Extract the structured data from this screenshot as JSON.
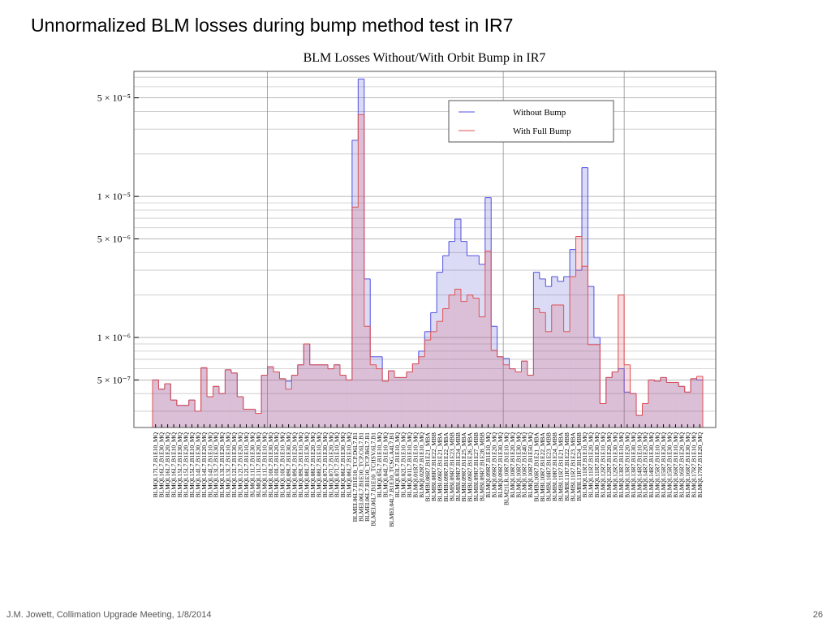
{
  "slide_title": "Unnormalized BLM losses during bump method test in IR7",
  "footer": "J.M. Jowett, Collimation Upgrade Meeting, 1/8/2014",
  "page_number": "26",
  "chart_data": {
    "type": "step",
    "title": "BLM Losses Without/With Orbit Bump in IR7",
    "log_y": true,
    "grid": true,
    "legend": "top-right",
    "ylim": [
      2.3e-07,
      7.7e-05
    ],
    "yticks": [
      {
        "value": 5e-07,
        "label": "5 × 10⁻⁷"
      },
      {
        "value": 1e-06,
        "label": "1 × 10⁻⁶"
      },
      {
        "value": 5e-06,
        "label": "5 × 10⁻⁶"
      },
      {
        "value": 1e-05,
        "label": "1 × 10⁻⁵"
      },
      {
        "value": 5e-05,
        "label": "5 × 10⁻⁵"
      }
    ],
    "minor_yticks": [
      3e-07,
      4e-07,
      6e-07,
      7e-07,
      8e-07,
      9e-07,
      2e-06,
      3e-06,
      4e-06,
      6e-06,
      7e-06,
      8e-06,
      9e-06,
      2e-05,
      3e-05,
      4e-05,
      6e-05,
      7e-05
    ],
    "xgrid_before": [
      19,
      58,
      78
    ],
    "categories": [
      "BLMQI.17L7.B1E10_MQ",
      "BLMQI.16L7.B1E30_MQ",
      "BLMQI.16L7.B1E20_MQ",
      "BLMQI.16L7.B1E10_MQ",
      "BLMQI.15L7.B1E30_MQ",
      "BLMQI.15L7.B1E20_MQ",
      "BLMQI.15L7.B1E10_MQ",
      "BLMQI.14L7.B1E30_MQ",
      "BLMQI.14L7.B1E20_MQ",
      "BLMQI.14L7.B1E10_MQ",
      "BLMQI.13L7.B1E30_MQ",
      "BLMQI.13L7.B1E20_MQ",
      "BLMQI.13L7.B1E10_MQ",
      "BLMQI.12L7.B1E30_MQ",
      "BLMQI.12L7.B1E20_MQ",
      "BLMQI.12L7.B1E10_MQ",
      "BLMQI.11L7.B1E30_MQ",
      "BLMQI.11L7.B1E20_MQ",
      "BLMQI.11L7.B1E10_MQ",
      "BLMQI.10L7.B1E30_MQ",
      "BLMQI.10L7.B1E20_MQ",
      "BLMQI.10L7.B1E10_MQ",
      "BLMQI.09L7.B1E30_MQ",
      "BLMQI.09L7.B1E20_MQ",
      "BLMQI.09L7.B1E10_MQ",
      "BLMQI.08L7.B1E30_MQ",
      "BLMQI.08L7.B1E20_MQ",
      "BLMQI.08L7.B1E10_MQ",
      "BLMQI.07L7.B1E30_MQ",
      "BLMQI.07L7.B1E20_MQ",
      "BLMQI.07L7.B1E10_MQ",
      "BLMQI.06L7.B1E30_MQ",
      "BLMQI.06L7.B1E10_MQ",
      "BLMEI.06L7.B1E10_TCP.D6L7.B1",
      "BLMEI.06L7.B1E10_TCP.C6L7.B1",
      "BLMEI.06L7.B1E10_TCP.B6L7.B1",
      "BLMEI.06L7.B1E10_TCHSV.6L7.B1",
      "BLMQI.05L7.B1E10_MQ",
      "BLMQI.04L7.B1E10_MQ",
      "BLMEI.04L7.B1E10_TCSG.A4L7.B1",
      "BLMQI.03L7.B1E10_MQ",
      "BLMQI.02L7.B1E10_MQ",
      "BLMQI.01L7.B1E10_MQ",
      "BLMQI.01R7.B1E10_MQ",
      "BLMQI.02R7.B1E10_MQ",
      "BLMBI.08R7.B1E21_MBA",
      "BLMBI.08R7.B1E22_MBB",
      "BLMBI.09R7.B1E21_MBA",
      "BLMBI.09R7.B1E22_MBA",
      "BLMBI.09R7.B1E23_MBB",
      "BLMBI.09R7.B1E24_MBB",
      "BLMBI.09R7.B1E25_MBA",
      "BLMBI.09R7.B1E26_MBA",
      "BLMBI.09R7.B1E27_MBB",
      "BLMBI.09R7.B1E28_MBB",
      "BLMQI.09R7.B1E10_MQ",
      "BLMQI.09R7.B1E20_MQ",
      "BLMQI.09R7.B1E30_MQ",
      "BLM21LR.10R7.B1E10_MQ",
      "BLMQI.10R7.B1E20_MQ",
      "BLMQI.10R7.B1E30_MQ",
      "BLMQI.10R7.B1E40_MQ",
      "BLMQI.10R7.B1E50_MQ",
      "BLMBI.10R7.B1E21_MBA",
      "BLMBI.10R7.B1E22_MBA",
      "BLMBI.10R7.B1E23_MBB",
      "BLMBI.10R7.B1E24_MBB",
      "BLMBI.11R7.B1E21_MBA",
      "BLMBI.11R7.B1E22_MBB",
      "BLMBI.11R7.B1E23_MBA",
      "BLMBI.11R7.B1E24_MBB",
      "BLMQI.11R7.B1E10_MQ",
      "BLMQI.11R7.B1E20_MQ",
      "BLMQI.11R7.B1E30_MQ",
      "BLMQI.12R7.B1E10_MQ",
      "BLMQI.12R7.B1E20_MQ",
      "BLMQI.12R7.B1E30_MQ",
      "BLMQI.13R7.B1E10_MQ",
      "BLMQI.13R7.B1E20_MQ",
      "BLMQI.13R7.B1E30_MQ",
      "BLMQI.14R7.B1E10_MQ",
      "BLMQI.14R7.B1E20_MQ",
      "BLMQI.14R7.B1E30_MQ",
      "BLMQI.15R7.B1E10_MQ",
      "BLMQI.15R7.B1E20_MQ",
      "BLMQI.15R7.B1E30_MQ",
      "BLMQI.16R7.B1E10_MQ",
      "BLMQI.16R7.B1E20_MQ",
      "BLMQI.16R7.B1E30_MQ",
      "BLMQI.17R7.B1E10_MQ",
      "BLMQI.17R7.B1E20_MQ"
    ],
    "series": [
      {
        "name": "Without Bump",
        "color": "#5050e0",
        "fill": "rgba(90,90,210,0.22)",
        "values": [
          5e-07,
          4.3e-07,
          4.7e-07,
          3.6e-07,
          3.3e-07,
          3.3e-07,
          3.6e-07,
          3e-07,
          6.1e-07,
          3.8e-07,
          4.5e-07,
          4e-07,
          5.9e-07,
          5.6e-07,
          3.8e-07,
          3.1e-07,
          3.1e-07,
          2.9e-07,
          5.4e-07,
          6.2e-07,
          5.7e-07,
          5.1e-07,
          4.9e-07,
          5.4e-07,
          6.4e-07,
          9e-07,
          6.4e-07,
          6.4e-07,
          6.4e-07,
          6e-07,
          6.4e-07,
          5.4e-07,
          5e-07,
          2.5e-05,
          6.8e-05,
          2.6e-06,
          7.3e-07,
          7.3e-07,
          4.9e-07,
          5.8e-07,
          5.2e-07,
          5.2e-07,
          5.7e-07,
          6.5e-07,
          8e-07,
          1.1e-06,
          1.5e-06,
          2.9e-06,
          3.8e-06,
          4.8e-06,
          6.9e-06,
          4.8e-06,
          3.8e-06,
          3.8e-06,
          3.3e-06,
          9.8e-06,
          1.2e-06,
          7.3e-07,
          7.1e-07,
          6e-07,
          5.7e-07,
          6.8e-07,
          5.4e-07,
          2.9e-06,
          2.6e-06,
          2.3e-06,
          2.7e-06,
          2.5e-06,
          2.7e-06,
          4.2e-06,
          3e-06,
          1.6e-05,
          2.3e-06,
          1e-06,
          3.4e-07,
          5.2e-07,
          5.7e-07,
          6e-07,
          4.1e-07,
          4e-07,
          2.8e-07,
          3.4e-07,
          5e-07,
          4.9e-07,
          5.2e-07,
          4.8e-07,
          4.8e-07,
          4.5e-07,
          4.1e-07,
          5.1e-07,
          5e-07
        ]
      },
      {
        "name": "With Full Bump",
        "color": "#e05050",
        "fill": "rgba(220,90,110,0.22)",
        "values": [
          5e-07,
          4.3e-07,
          4.7e-07,
          3.6e-07,
          3.3e-07,
          3.3e-07,
          3.6e-07,
          3e-07,
          6.1e-07,
          3.8e-07,
          4.5e-07,
          4e-07,
          5.9e-07,
          5.6e-07,
          3.8e-07,
          3.1e-07,
          3.1e-07,
          2.9e-07,
          5.4e-07,
          6.2e-07,
          5.7e-07,
          5.1e-07,
          4.3e-07,
          5.4e-07,
          6.4e-07,
          9e-07,
          6.4e-07,
          6.4e-07,
          6.4e-07,
          6e-07,
          6.4e-07,
          5.4e-07,
          5e-07,
          8.4e-06,
          3.8e-05,
          1.2e-06,
          6.4e-07,
          6e-07,
          4.9e-07,
          5.8e-07,
          5.2e-07,
          5.2e-07,
          5.7e-07,
          6.5e-07,
          7.3e-07,
          9.6e-07,
          1.1e-06,
          1.3e-06,
          1.6e-06,
          2e-06,
          2.2e-06,
          1.8e-06,
          2e-06,
          1.9e-06,
          1.4e-06,
          4.1e-06,
          8.1e-07,
          7.3e-07,
          6.4e-07,
          6e-07,
          5.7e-07,
          6.8e-07,
          5.4e-07,
          1.6e-06,
          1.5e-06,
          1.1e-06,
          1.7e-06,
          1.7e-06,
          1.1e-06,
          2.7e-06,
          5.2e-06,
          3.2e-06,
          8.9e-07,
          8.9e-07,
          3.4e-07,
          5.2e-07,
          5.7e-07,
          2e-06,
          6.4e-07,
          4e-07,
          2.8e-07,
          3.4e-07,
          5e-07,
          4.9e-07,
          5.2e-07,
          4.8e-07,
          4.8e-07,
          4.5e-07,
          4.1e-07,
          5.1e-07,
          5.3e-07
        ]
      }
    ]
  }
}
